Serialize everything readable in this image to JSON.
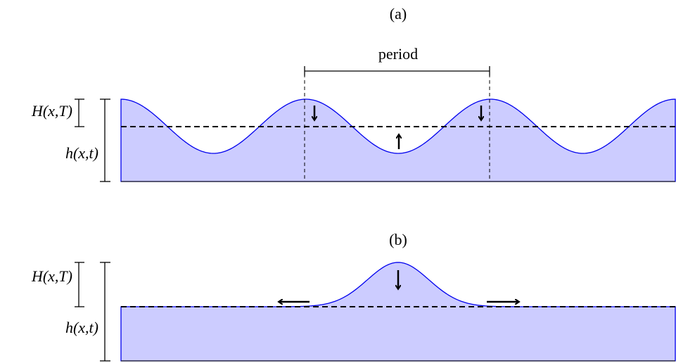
{
  "panels": [
    {
      "label": "(a)",
      "period_label": "period",
      "H_label": "H(x,T)",
      "h_label": "h(x,t)"
    },
    {
      "label": "(b)",
      "H_label": "H(x,T)",
      "h_label": "h(x,t)"
    }
  ]
}
